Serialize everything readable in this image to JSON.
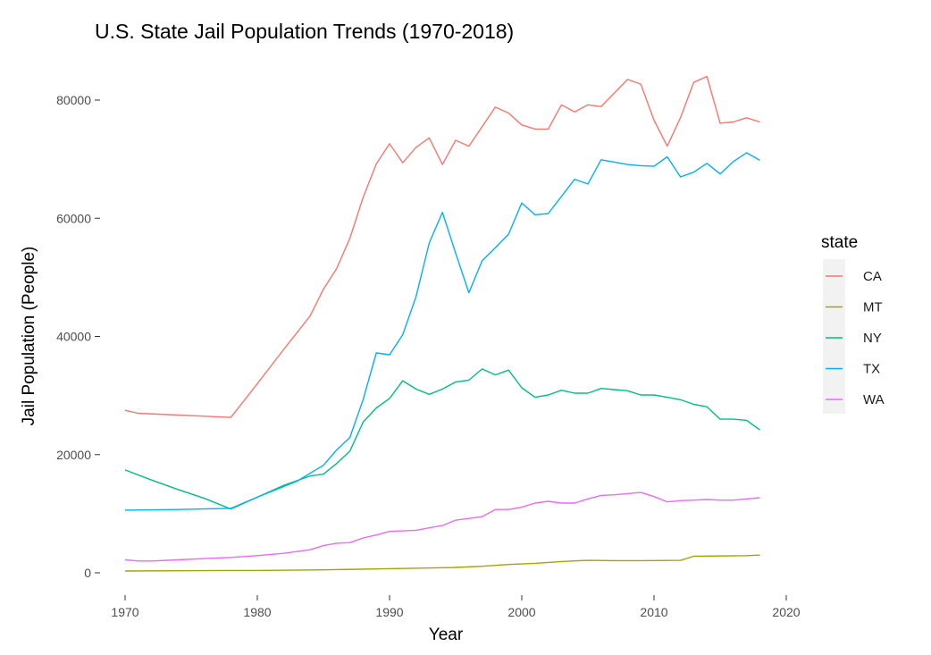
{
  "chart_data": {
    "type": "line",
    "title": "U.S. State Jail Population Trends (1970-2018)",
    "xlabel": "Year",
    "ylabel": "Jail Population (People)",
    "xlim": [
      1970,
      2020
    ],
    "ylim": [
      0,
      85000
    ],
    "x_ticks": [
      1970,
      1980,
      1990,
      2000,
      2010,
      2020
    ],
    "y_ticks": [
      0,
      20000,
      40000,
      60000,
      80000
    ],
    "grid": false,
    "legend": {
      "title": "state",
      "position": "right"
    },
    "series": [
      {
        "name": "CA",
        "color": "#F8766D",
        "x": [
          1970,
          1971,
          1978,
          1980,
          1982,
          1984,
          1985,
          1986,
          1987,
          1988,
          1989,
          1990,
          1991,
          1992,
          1993,
          1994,
          1995,
          1996,
          1997,
          1998,
          1999,
          2000,
          2001,
          2002,
          2003,
          2004,
          2005,
          2006,
          2007,
          2008,
          2009,
          2010,
          2011,
          2012,
          2013,
          2014,
          2015,
          2016,
          2017,
          2018
        ],
        "y": [
          27500,
          27000,
          26300,
          32000,
          37800,
          43500,
          48000,
          51500,
          56600,
          63500,
          69200,
          72600,
          69400,
          72000,
          73600,
          69100,
          73200,
          72200,
          75500,
          78800,
          77800,
          75800,
          75100,
          75100,
          79200,
          78000,
          79200,
          78900,
          81200,
          83500,
          82700,
          76600,
          72200,
          77000,
          83000,
          84000,
          76100,
          76300,
          77000,
          76300
        ]
      },
      {
        "name": "MT",
        "color": "#A3A500",
        "x": [
          1970,
          1974,
          1978,
          1980,
          1985,
          1990,
          1995,
          1997,
          1999,
          2001,
          2003,
          2005,
          2007,
          2009,
          2012,
          2013,
          2017,
          2018
        ],
        "y": [
          300,
          350,
          400,
          400,
          500,
          700,
          900,
          1100,
          1400,
          1600,
          1900,
          2100,
          2050,
          2050,
          2100,
          2800,
          2900,
          3000
        ]
      },
      {
        "name": "NY",
        "color": "#00BF7D",
        "x": [
          1970,
          1972,
          1974,
          1976,
          1978,
          1980,
          1982,
          1984,
          1985,
          1986,
          1987,
          1988,
          1989,
          1990,
          1991,
          1992,
          1993,
          1994,
          1995,
          1996,
          1997,
          1998,
          1999,
          2000,
          2001,
          2002,
          2003,
          2004,
          2005,
          2006,
          2007,
          2008,
          2009,
          2010,
          2011,
          2012,
          2013,
          2014,
          2015,
          2016,
          2017,
          2018
        ],
        "y": [
          17400,
          15700,
          14100,
          12600,
          10800,
          12800,
          14800,
          16400,
          16700,
          18500,
          20600,
          25500,
          27900,
          29500,
          32500,
          31100,
          30200,
          31100,
          32300,
          32600,
          34500,
          33500,
          34300,
          31300,
          29700,
          30100,
          30900,
          30400,
          30400,
          31200,
          31000,
          30800,
          30100,
          30100,
          29700,
          29300,
          28500,
          28100,
          26000,
          26000,
          25800,
          24200
        ]
      },
      {
        "name": "TX",
        "color": "#00B0F6",
        "x": [
          1970,
          1974,
          1978,
          1980,
          1983,
          1985,
          1986,
          1987,
          1988,
          1989,
          1990,
          1991,
          1992,
          1993,
          1994,
          1995,
          1996,
          1997,
          1998,
          1999,
          2000,
          2001,
          2002,
          2003,
          2004,
          2005,
          2006,
          2007,
          2008,
          2009,
          2010,
          2011,
          2012,
          2013,
          2014,
          2015,
          2016,
          2017,
          2018
        ],
        "y": [
          10600,
          10700,
          10900,
          12800,
          15500,
          18200,
          20800,
          22900,
          29300,
          37200,
          36900,
          40300,
          46700,
          55800,
          61000,
          54100,
          47400,
          52800,
          55000,
          57300,
          62600,
          60600,
          60800,
          63700,
          66600,
          65800,
          69900,
          69500,
          69100,
          68900,
          68800,
          70400,
          67000,
          67800,
          69300,
          67500,
          69600,
          71100,
          69800
        ]
      },
      {
        "name": "WA",
        "color": "#E76BF3",
        "x": [
          1970,
          1971,
          1972,
          1974,
          1976,
          1978,
          1980,
          1982,
          1983,
          1984,
          1985,
          1986,
          1987,
          1988,
          1989,
          1990,
          1991,
          1992,
          1993,
          1994,
          1995,
          1996,
          1997,
          1998,
          1999,
          2000,
          2001,
          2002,
          2003,
          2004,
          2005,
          2006,
          2007,
          2008,
          2009,
          2010,
          2011,
          2012,
          2013,
          2014,
          2015,
          2016,
          2017,
          2018
        ],
        "y": [
          2200,
          2000,
          2000,
          2200,
          2400,
          2600,
          2900,
          3300,
          3600,
          3900,
          4600,
          5000,
          5100,
          5900,
          6400,
          7000,
          7100,
          7200,
          7600,
          8000,
          8900,
          9200,
          9500,
          10700,
          10700,
          11100,
          11800,
          12100,
          11800,
          11800,
          12500,
          13100,
          13200,
          13400,
          13600,
          12900,
          12000,
          12200,
          12300,
          12400,
          12300,
          12300,
          12500,
          12700
        ]
      }
    ]
  }
}
